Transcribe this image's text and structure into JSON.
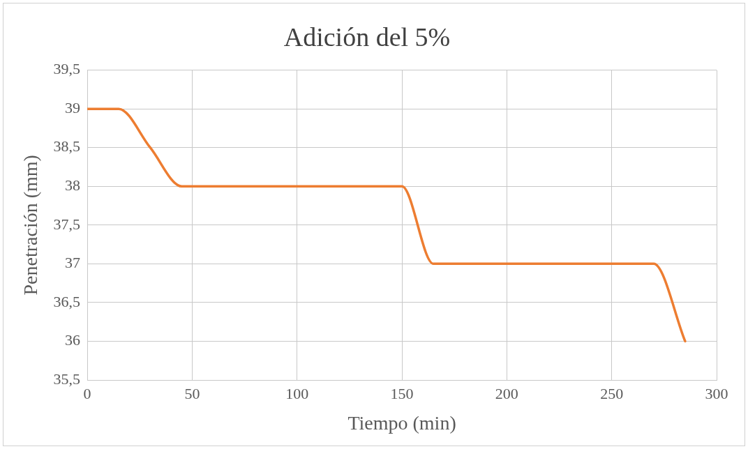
{
  "chart_data": {
    "type": "line",
    "title": "Adición del 5%",
    "xlabel": "Tiempo (min)",
    "ylabel": "Penetración (mm)",
    "x": [
      0,
      15,
      30,
      45,
      60,
      75,
      90,
      105,
      120,
      135,
      150,
      165,
      180,
      195,
      210,
      225,
      240,
      255,
      270,
      285
    ],
    "series": [
      {
        "color": "#ed7d31",
        "values": [
          39,
          39,
          38.5,
          38,
          38,
          38,
          38,
          38,
          38,
          38,
          38,
          37,
          37,
          37,
          37,
          37,
          37,
          37,
          37,
          36
        ]
      }
    ],
    "xlim": [
      0,
      300
    ],
    "xticks": [
      0,
      50,
      100,
      150,
      200,
      250,
      300
    ],
    "ylim": [
      35.5,
      39.5
    ],
    "yticks": [
      {
        "value": 35.5,
        "label": "35,5"
      },
      {
        "value": 36,
        "label": "36"
      },
      {
        "value": 36.5,
        "label": "36,5"
      },
      {
        "value": 37,
        "label": "37"
      },
      {
        "value": 37.5,
        "label": "37,5"
      },
      {
        "value": 38,
        "label": "38"
      },
      {
        "value": 38.5,
        "label": "38,5"
      },
      {
        "value": 39,
        "label": "39"
      },
      {
        "value": 39.5,
        "label": "39,5"
      }
    ],
    "grid": true,
    "marker": "none",
    "line_style": "solid",
    "legend": false
  }
}
